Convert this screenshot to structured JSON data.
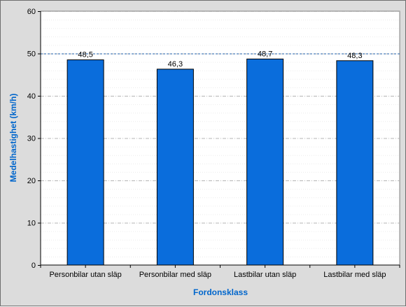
{
  "chart_data": {
    "type": "bar",
    "categories": [
      "Personbilar utan släp",
      "Personbilar med släp",
      "Lastbilar utan släp",
      "Lastbilar med släp"
    ],
    "values": [
      48.5,
      46.3,
      48.7,
      48.3
    ],
    "value_labels": [
      "48,5",
      "46,3",
      "48,7",
      "48,3"
    ],
    "xlabel": "Fordonsklass",
    "ylabel": "Medelhastighet (km/h)",
    "ylim": [
      0,
      60
    ],
    "y_ticks": [
      "0",
      "10",
      "20",
      "30",
      "40",
      "50",
      "60"
    ],
    "reference_line": 50,
    "grid": true,
    "legend": false
  },
  "colors": {
    "bar_fill": "#0a6ddc",
    "axis_title": "#0066cc",
    "frame_background": "#dcdcdc",
    "plot_background": "#ffffff",
    "reference_line": "#1f5fa8"
  }
}
